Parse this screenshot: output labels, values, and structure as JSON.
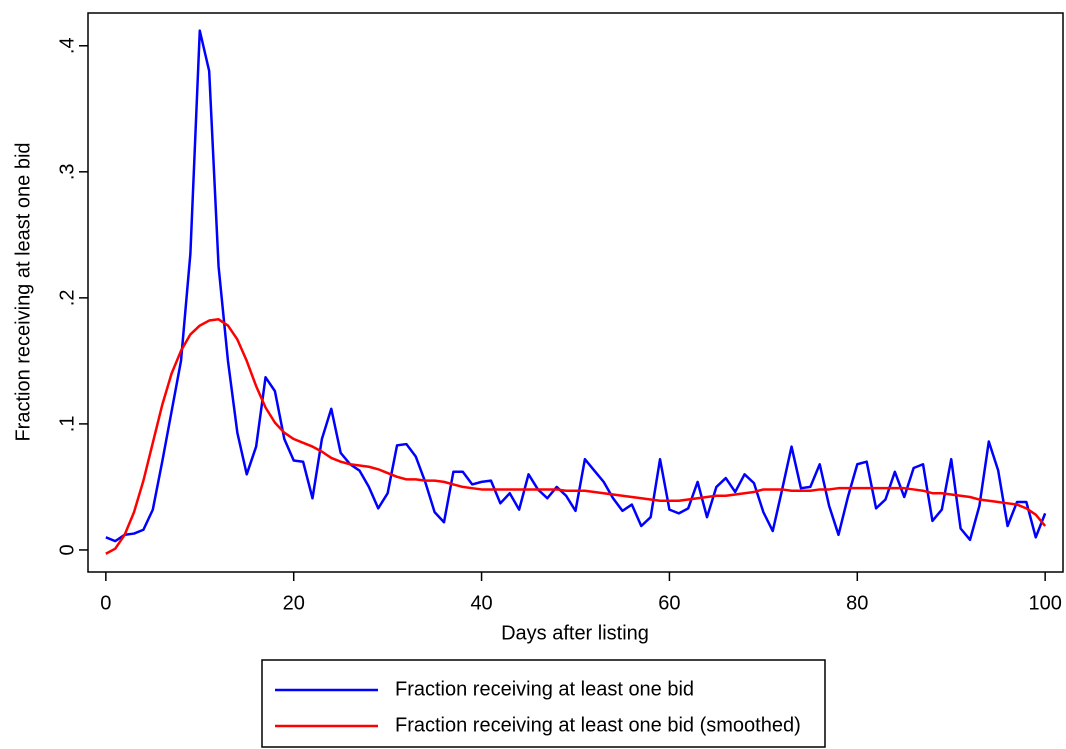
{
  "chart_data": {
    "type": "line",
    "xlabel": "Days after listing",
    "ylabel": "Fraction receiving at least one bid",
    "x": [
      0,
      1,
      2,
      3,
      4,
      5,
      6,
      7,
      8,
      9,
      10,
      11,
      12,
      13,
      14,
      15,
      16,
      17,
      18,
      19,
      20,
      21,
      22,
      23,
      24,
      25,
      26,
      27,
      28,
      29,
      30,
      31,
      32,
      33,
      34,
      35,
      36,
      37,
      38,
      39,
      40,
      41,
      42,
      43,
      44,
      45,
      46,
      47,
      48,
      49,
      50,
      51,
      52,
      53,
      54,
      55,
      56,
      57,
      58,
      59,
      60,
      61,
      62,
      63,
      64,
      65,
      66,
      67,
      68,
      69,
      70,
      71,
      72,
      73,
      74,
      75,
      76,
      77,
      78,
      79,
      80,
      81,
      82,
      83,
      84,
      85,
      86,
      87,
      88,
      89,
      90,
      91,
      92,
      93,
      94,
      95,
      96,
      97,
      98,
      99,
      100
    ],
    "series": [
      {
        "name": "Fraction receiving at least one bid",
        "color": "#0000ff",
        "values": [
          0.01,
          0.007,
          0.012,
          0.013,
          0.016,
          0.032,
          0.07,
          0.11,
          0.15,
          0.235,
          0.412,
          0.38,
          0.225,
          0.15,
          0.093,
          0.06,
          0.082,
          0.137,
          0.126,
          0.088,
          0.071,
          0.07,
          0.041,
          0.088,
          0.112,
          0.077,
          0.068,
          0.063,
          0.05,
          0.033,
          0.045,
          0.083,
          0.084,
          0.074,
          0.054,
          0.03,
          0.022,
          0.062,
          0.062,
          0.052,
          0.054,
          0.055,
          0.037,
          0.045,
          0.032,
          0.06,
          0.048,
          0.041,
          0.05,
          0.043,
          0.031,
          0.072,
          0.063,
          0.054,
          0.041,
          0.031,
          0.036,
          0.019,
          0.026,
          0.072,
          0.032,
          0.029,
          0.033,
          0.054,
          0.026,
          0.05,
          0.057,
          0.046,
          0.06,
          0.053,
          0.03,
          0.015,
          0.048,
          0.082,
          0.049,
          0.05,
          0.068,
          0.035,
          0.012,
          0.042,
          0.068,
          0.07,
          0.033,
          0.04,
          0.062,
          0.042,
          0.065,
          0.068,
          0.023,
          0.032,
          0.072,
          0.017,
          0.008,
          0.035,
          0.086,
          0.063,
          0.019,
          0.038,
          0.038,
          0.01,
          0.029
        ]
      },
      {
        "name": "Fraction receiving at least one bid (smoothed)",
        "color": "#ff0000",
        "values": [
          -0.003,
          0.001,
          0.012,
          0.03,
          0.055,
          0.085,
          0.115,
          0.14,
          0.158,
          0.171,
          0.178,
          0.182,
          0.183,
          0.178,
          0.167,
          0.15,
          0.13,
          0.113,
          0.101,
          0.093,
          0.088,
          0.085,
          0.082,
          0.078,
          0.073,
          0.07,
          0.068,
          0.067,
          0.066,
          0.064,
          0.061,
          0.058,
          0.056,
          0.056,
          0.055,
          0.055,
          0.054,
          0.052,
          0.05,
          0.049,
          0.048,
          0.048,
          0.048,
          0.048,
          0.048,
          0.048,
          0.048,
          0.048,
          0.048,
          0.047,
          0.047,
          0.047,
          0.046,
          0.045,
          0.044,
          0.043,
          0.042,
          0.041,
          0.04,
          0.039,
          0.039,
          0.039,
          0.04,
          0.041,
          0.042,
          0.043,
          0.043,
          0.044,
          0.045,
          0.046,
          0.048,
          0.048,
          0.048,
          0.047,
          0.047,
          0.047,
          0.048,
          0.048,
          0.049,
          0.049,
          0.049,
          0.049,
          0.049,
          0.049,
          0.049,
          0.049,
          0.048,
          0.047,
          0.045,
          0.045,
          0.044,
          0.043,
          0.042,
          0.04,
          0.039,
          0.038,
          0.037,
          0.036,
          0.033,
          0.028,
          0.019
        ]
      }
    ],
    "xlim": [
      -1.9,
      101.9
    ],
    "ylim": [
      -0.0175,
      0.426
    ],
    "xticks": [
      0,
      20,
      40,
      60,
      80,
      100
    ],
    "yticks": [
      0,
      {
        "value": 0.1,
        "label": ".1"
      },
      {
        "value": 0.2,
        "label": ".2"
      },
      {
        "value": 0.3,
        "label": ".3"
      },
      {
        "value": 0.4,
        "label": ".4"
      }
    ]
  }
}
